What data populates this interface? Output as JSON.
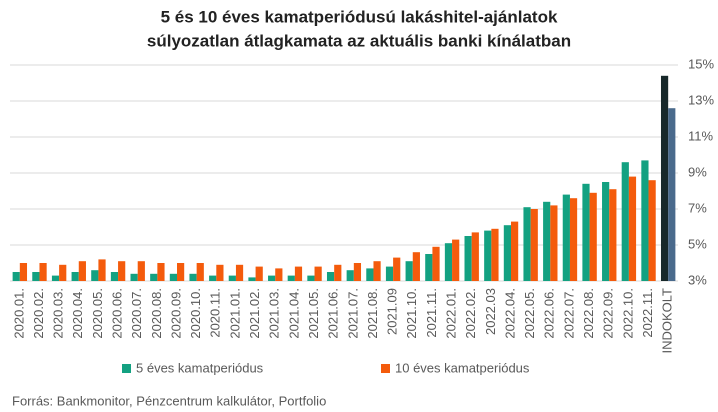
{
  "chart_data": {
    "type": "bar",
    "title": [
      "5 és 10 éves kamatperiódusú lakáshitel-ajánlatok",
      "súlyozatlan átlagkamata az aktuális banki kínálatban"
    ],
    "categories": [
      "2020.01.",
      "2020.02.",
      "2020.03.",
      "2020.04.",
      "2020.05.",
      "2020.06.",
      "2020.07.",
      "2020.08.",
      "2020.09.",
      "2020.10.",
      "2020.11.",
      "2021.01.",
      "2021.02.",
      "2021.03.",
      "2021.04.",
      "2021.05.",
      "2021.06.",
      "2021.07.",
      "2021.08.",
      "2021.09",
      "2021.10.",
      "2021.11.",
      "2022.01.",
      "2022.02.",
      "2022.03",
      "2022.04.",
      "2022.05.",
      "2022.06.",
      "2022.07.",
      "2022.08.",
      "2022.09.",
      "2022.10.",
      "2022.11.",
      "INDOKOLT"
    ],
    "series": [
      {
        "name": "5 éves kamatperiódus",
        "color": "#13a181",
        "special_color": "#17282a",
        "values": [
          3.5,
          3.5,
          3.3,
          3.5,
          3.6,
          3.5,
          3.4,
          3.4,
          3.4,
          3.4,
          3.3,
          3.3,
          3.2,
          3.3,
          3.3,
          3.3,
          3.5,
          3.6,
          3.7,
          3.8,
          4.1,
          4.5,
          5.1,
          5.5,
          5.8,
          6.1,
          7.1,
          7.4,
          7.8,
          8.4,
          8.5,
          9.6,
          9.7,
          14.4
        ]
      },
      {
        "name": "10 éves kamatperiódus",
        "color": "#f45b0c",
        "special_color": "#4a6a8c",
        "values": [
          4.0,
          4.0,
          3.9,
          4.1,
          4.2,
          4.1,
          4.1,
          4.0,
          4.0,
          4.0,
          3.9,
          3.9,
          3.8,
          3.7,
          3.8,
          3.8,
          3.9,
          4.0,
          4.1,
          4.3,
          4.6,
          4.9,
          5.3,
          5.7,
          5.9,
          6.3,
          7.0,
          7.2,
          7.6,
          7.9,
          8.1,
          8.8,
          8.6,
          12.6
        ]
      }
    ],
    "ylim": [
      3,
      15
    ],
    "yticks": [
      {
        "value": 3,
        "label": "3%"
      },
      {
        "value": 5,
        "label": "5%"
      },
      {
        "value": 7,
        "label": "7%"
      },
      {
        "value": 9,
        "label": "9%"
      },
      {
        "value": 11,
        "label": "11%"
      },
      {
        "value": 13,
        "label": "13%"
      },
      {
        "value": 15,
        "label": "15%"
      }
    ],
    "grid": true,
    "source": "Forrás: Bankmonitor, Pénzcentrum kalkulátor, Portfolio"
  }
}
